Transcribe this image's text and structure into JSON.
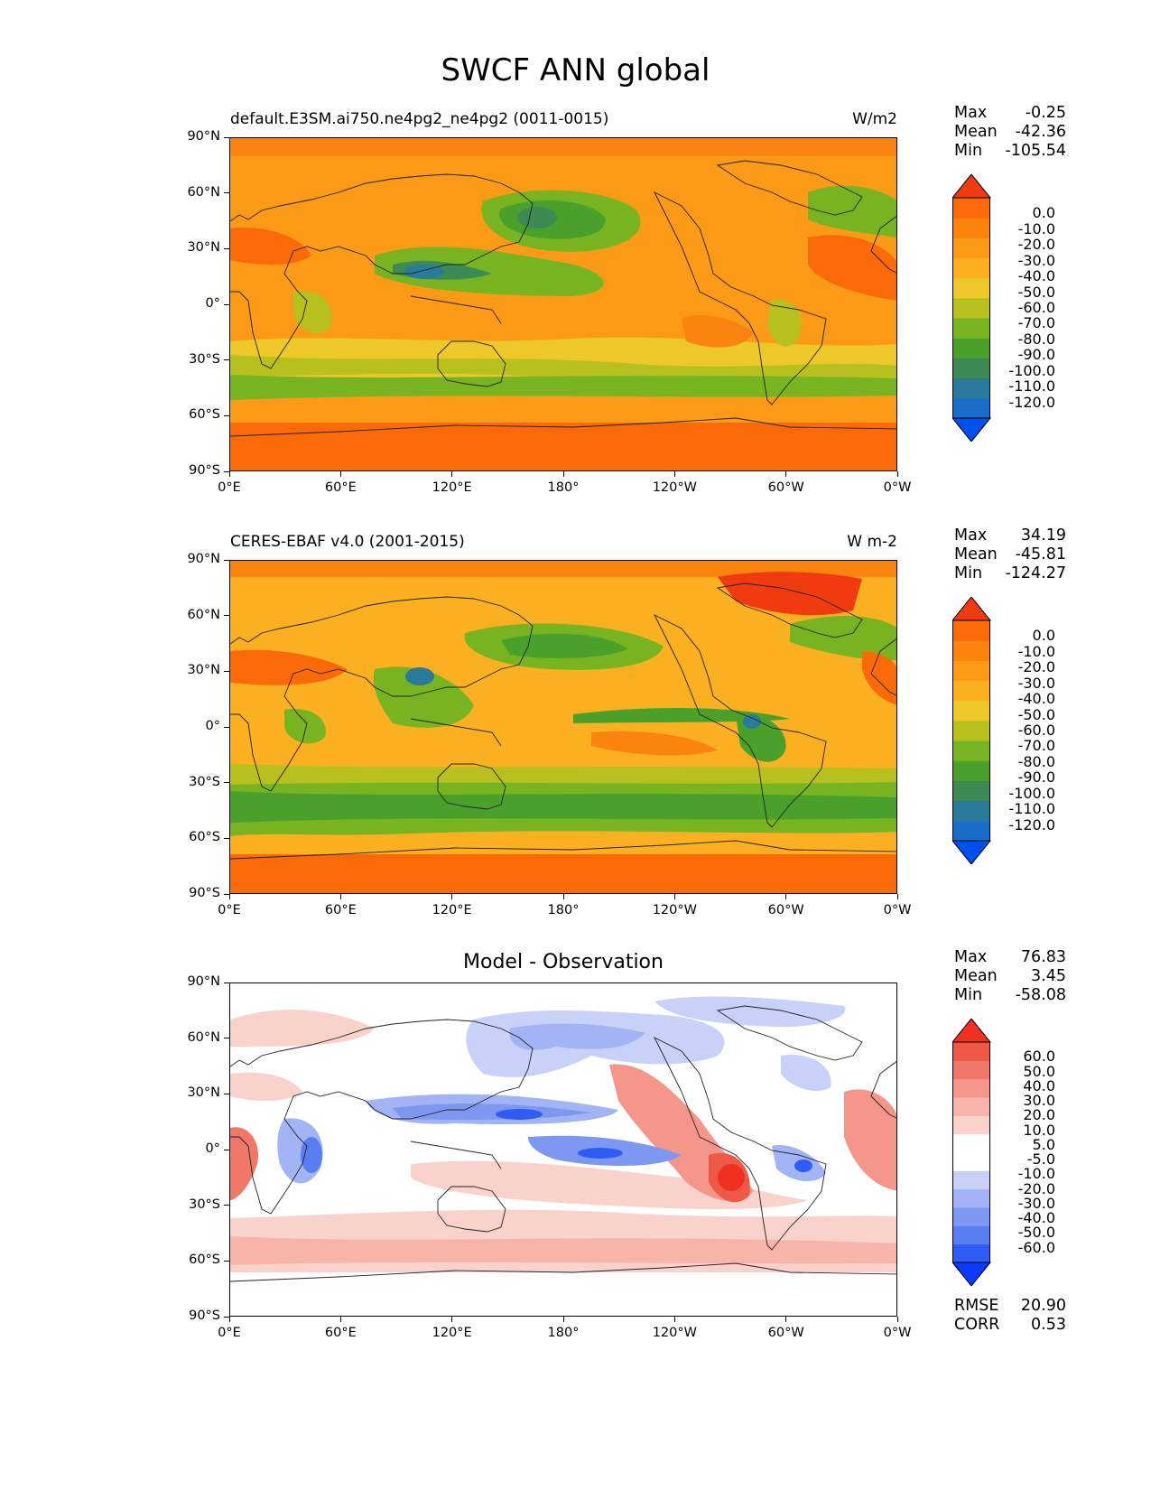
{
  "title": "SWCF ANN global",
  "lon_ticks": [
    "0°E",
    "60°E",
    "120°E",
    "180°",
    "120°W",
    "60°W",
    "0°W"
  ],
  "lat_ticks": [
    "90°N",
    "60°N",
    "30°N",
    "0°",
    "30°S",
    "60°S",
    "90°S"
  ],
  "stat_labels": {
    "max": "Max",
    "mean": "Mean",
    "min": "Min",
    "rmse": "RMSE",
    "corr": "CORR"
  },
  "colors": {
    "abs_scale": [
      "#0050f0",
      "#1a6ec8",
      "#2a7a9a",
      "#3d8a55",
      "#4aa02a",
      "#78b422",
      "#b8c020",
      "#eec82a",
      "#fbb022",
      "#fb9a16",
      "#fb8410",
      "#fb6a08",
      "#f03a10"
    ],
    "diff_scale": [
      "#0a3aff",
      "#2f5cf5",
      "#5a7ef0",
      "#7e98f2",
      "#a2b4f5",
      "#c8d2f8",
      "#ffffff",
      "#ffffff",
      "#fad2cc",
      "#f8b4aa",
      "#f4968a",
      "#f07868",
      "#ee5846",
      "#f03020"
    ]
  },
  "panels": [
    {
      "id": "model",
      "left_title": "default.E3SM.ai750.ne4pg2_ne4pg2 (0011-0015)",
      "center_title": "",
      "units": "W/m2",
      "stats": {
        "max": "-0.25",
        "mean": "-42.36",
        "min": "-105.54"
      },
      "colorbar_labels": [
        "0.0",
        "-10.0",
        "-20.0",
        "-30.0",
        "-40.0",
        "-50.0",
        "-60.0",
        "-70.0",
        "-80.0",
        "-90.0",
        "-100.0",
        "-110.0",
        "-120.0"
      ]
    },
    {
      "id": "obs",
      "left_title": "CERES-EBAF v4.0 (2001-2015)",
      "center_title": "",
      "units": "W m-2",
      "stats": {
        "max": "34.19",
        "mean": "-45.81",
        "min": "-124.27"
      },
      "colorbar_labels": [
        "0.0",
        "-10.0",
        "-20.0",
        "-30.0",
        "-40.0",
        "-50.0",
        "-60.0",
        "-70.0",
        "-80.0",
        "-90.0",
        "-100.0",
        "-110.0",
        "-120.0"
      ]
    },
    {
      "id": "diff",
      "left_title": "",
      "center_title": "Model - Observation",
      "units": "",
      "stats": {
        "max": "76.83",
        "mean": "3.45",
        "min": "-58.08",
        "rmse": "20.90",
        "corr": "0.53"
      },
      "colorbar_labels": [
        "60.0",
        "50.0",
        "40.0",
        "30.0",
        "20.0",
        "10.0",
        "5.0",
        "-5.0",
        "-10.0",
        "-20.0",
        "-30.0",
        "-40.0",
        "-50.0",
        "-60.0"
      ]
    }
  ]
}
